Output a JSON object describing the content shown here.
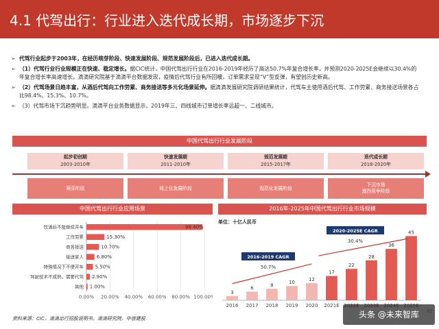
{
  "header": {
    "title": "4.1 代驾出行：行业进入迭代成长期，市场逐步下沉"
  },
  "bullets": [
    {
      "lead": "代驾行业起步于2003年，在经历萌芽阶段、快速发展阶段、规范发展阶段后，已进入迭代成长期。",
      "text": ""
    },
    {
      "lead": "（1）代驾行业行业规模正在快速、稳定增长。",
      "text": "据CIC统计，中国代驾出行行业在2016-2019年经历了高达50.7%年复合增长率，并预测2020-2025E会继续以30.4%的年复合增长率高速增长。滴滴研究院基于滴滴平台数据发现，疫情后代驾行业有所回暖，订单需求呈现“V”型反弹，有望创历史新高。"
    },
    {
      "lead": "（2）代驾场景日趋丰富，从酒后代驾向工作劳累、商务接送等多元化场景延伸。",
      "text": "据滴滴发展研究院调研结果统计，代驾车主使用酒后代驾、工作劳累、商务接送场景各占比98.4%、15.3%、10.7%。"
    },
    {
      "lead": "",
      "text": "（3）代驾市场下沉趋势明显。滴滴平台业务数据显示，2019年三、四线城市订单增长率远超一、二线城市。"
    }
  ],
  "stages": {
    "band_title": "中国代驾出行行业发展阶段",
    "items": [
      {
        "name": "起步初创期",
        "years": "2003-2010年",
        "desc": "萌芽阶段"
      },
      {
        "name": "快速发展期",
        "years": "2011-2010年",
        "desc": "线上化发展阶段"
      },
      {
        "name": "规范发展期",
        "years": "2015-2017年",
        "desc": "规范化发展阶段"
      },
      {
        "name": "迭代成长期",
        "years": "2018-2020年",
        "desc": "下沉市场\n激烈竞争阶段"
      }
    ]
  },
  "chart_data": [
    {
      "type": "bar",
      "orientation": "horizontal",
      "title": "中国代驾出行行业应用场景",
      "categories": [
        "饮酒后不能继续开车",
        "工作劳累",
        "商务接送",
        "接送家人",
        "特殊情况下不便开车",
        "驾驶技术不成熟，需要代驾",
        "其他"
      ],
      "values": [
        98.4,
        15.3,
        10.7,
        6.8,
        5.5,
        2.9,
        1.0
      ],
      "value_labels": [
        "98.40%",
        "15.30%",
        "10.70%",
        "6.80%",
        "5.50%",
        "2.90%",
        "1.00%"
      ],
      "xlim": [
        0,
        100
      ],
      "ticks": [
        "0.00%",
        "20.00%",
        "40.00%",
        "60.00%",
        "80.00%",
        "100.00%"
      ],
      "grid": true,
      "color": "#e25a52"
    },
    {
      "type": "bar",
      "title": "2016年-2025年中国代驾出行行业市场规模",
      "unit": "单位：十亿人民币",
      "categories": [
        "2016",
        "2017",
        "2018",
        "2019",
        "2020",
        "2021E",
        "2022E",
        "2023E",
        "2024E",
        "2025E"
      ],
      "values": [
        3,
        6,
        8,
        10,
        12,
        17,
        22,
        28,
        36,
        45
      ],
      "ylim": [
        0,
        50
      ],
      "annotations": [
        {
          "label": "2016-2019 CAGR",
          "value": "50.7%"
        },
        {
          "label": "2020-2025E CAGR",
          "value": "30.4%"
        }
      ],
      "colors": {
        "hist": "#f4b6b0",
        "forecast": "#e25a52"
      }
    }
  ],
  "footer": {
    "source": "资料来源：CIC，滴滴出行招股说明书，滴滴研究院，中信建投",
    "page": "35",
    "watermark": "头条 @未来智库"
  }
}
